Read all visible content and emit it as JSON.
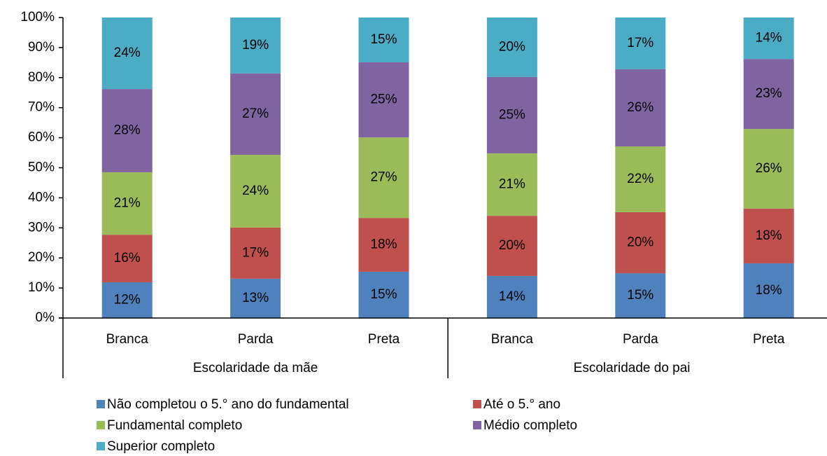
{
  "chart_data": {
    "type": "stacked_bar",
    "groups": [
      {
        "name": "Escolaridade da mãe",
        "categories": [
          "Branca",
          "Parda",
          "Preta"
        ]
      },
      {
        "name": "Escolaridade do pai",
        "categories": [
          "Branca",
          "Parda",
          "Preta"
        ]
      }
    ],
    "series": [
      {
        "name": "Não completou o 5.° ano do fundamental",
        "color": "#4f81bd",
        "values": [
          11.9,
          13.1,
          15.4,
          14.0,
          14.9,
          18.2
        ],
        "value_labels": [
          "12%",
          "13%",
          "15%",
          "14%",
          "15%",
          "18%"
        ]
      },
      {
        "name": "Até o 5.° ano",
        "color": "#c0504d",
        "values": [
          15.8,
          17.0,
          17.9,
          20.0,
          20.3,
          18.2
        ],
        "value_labels": [
          "16%",
          "17%",
          "18%",
          "20%",
          "20%",
          "18%"
        ]
      },
      {
        "name": "Fundamental completo",
        "color": "#9bbb59",
        "values": [
          20.8,
          24.2,
          26.8,
          20.8,
          21.9,
          26.5
        ],
        "value_labels": [
          "21%",
          "24%",
          "27%",
          "21%",
          "22%",
          "26%"
        ]
      },
      {
        "name": "Médio completo",
        "color": "#8064a2",
        "values": [
          27.7,
          27.1,
          25.0,
          25.4,
          25.7,
          23.3
        ],
        "value_labels": [
          "28%",
          "27%",
          "25%",
          "25%",
          "26%",
          "23%"
        ]
      },
      {
        "name": "Superior completo",
        "color": "#4bacc6",
        "values": [
          23.8,
          18.6,
          14.9,
          19.8,
          17.2,
          13.8
        ],
        "value_labels": [
          "24%",
          "19%",
          "15%",
          "20%",
          "17%",
          "14%"
        ]
      }
    ],
    "ylim": [
      0,
      100
    ],
    "yticks": [
      {
        "value": 0,
        "label": "0%"
      },
      {
        "value": 10,
        "label": "10%"
      },
      {
        "value": 20,
        "label": "20%"
      },
      {
        "value": 30,
        "label": "30%"
      },
      {
        "value": 40,
        "label": "40%"
      },
      {
        "value": 50,
        "label": "50%"
      },
      {
        "value": 60,
        "label": "60%"
      },
      {
        "value": 70,
        "label": "70%"
      },
      {
        "value": 80,
        "label": "80%"
      },
      {
        "value": 90,
        "label": "90%"
      },
      {
        "value": 100,
        "label": "100%"
      }
    ],
    "legend": "bottom"
  }
}
